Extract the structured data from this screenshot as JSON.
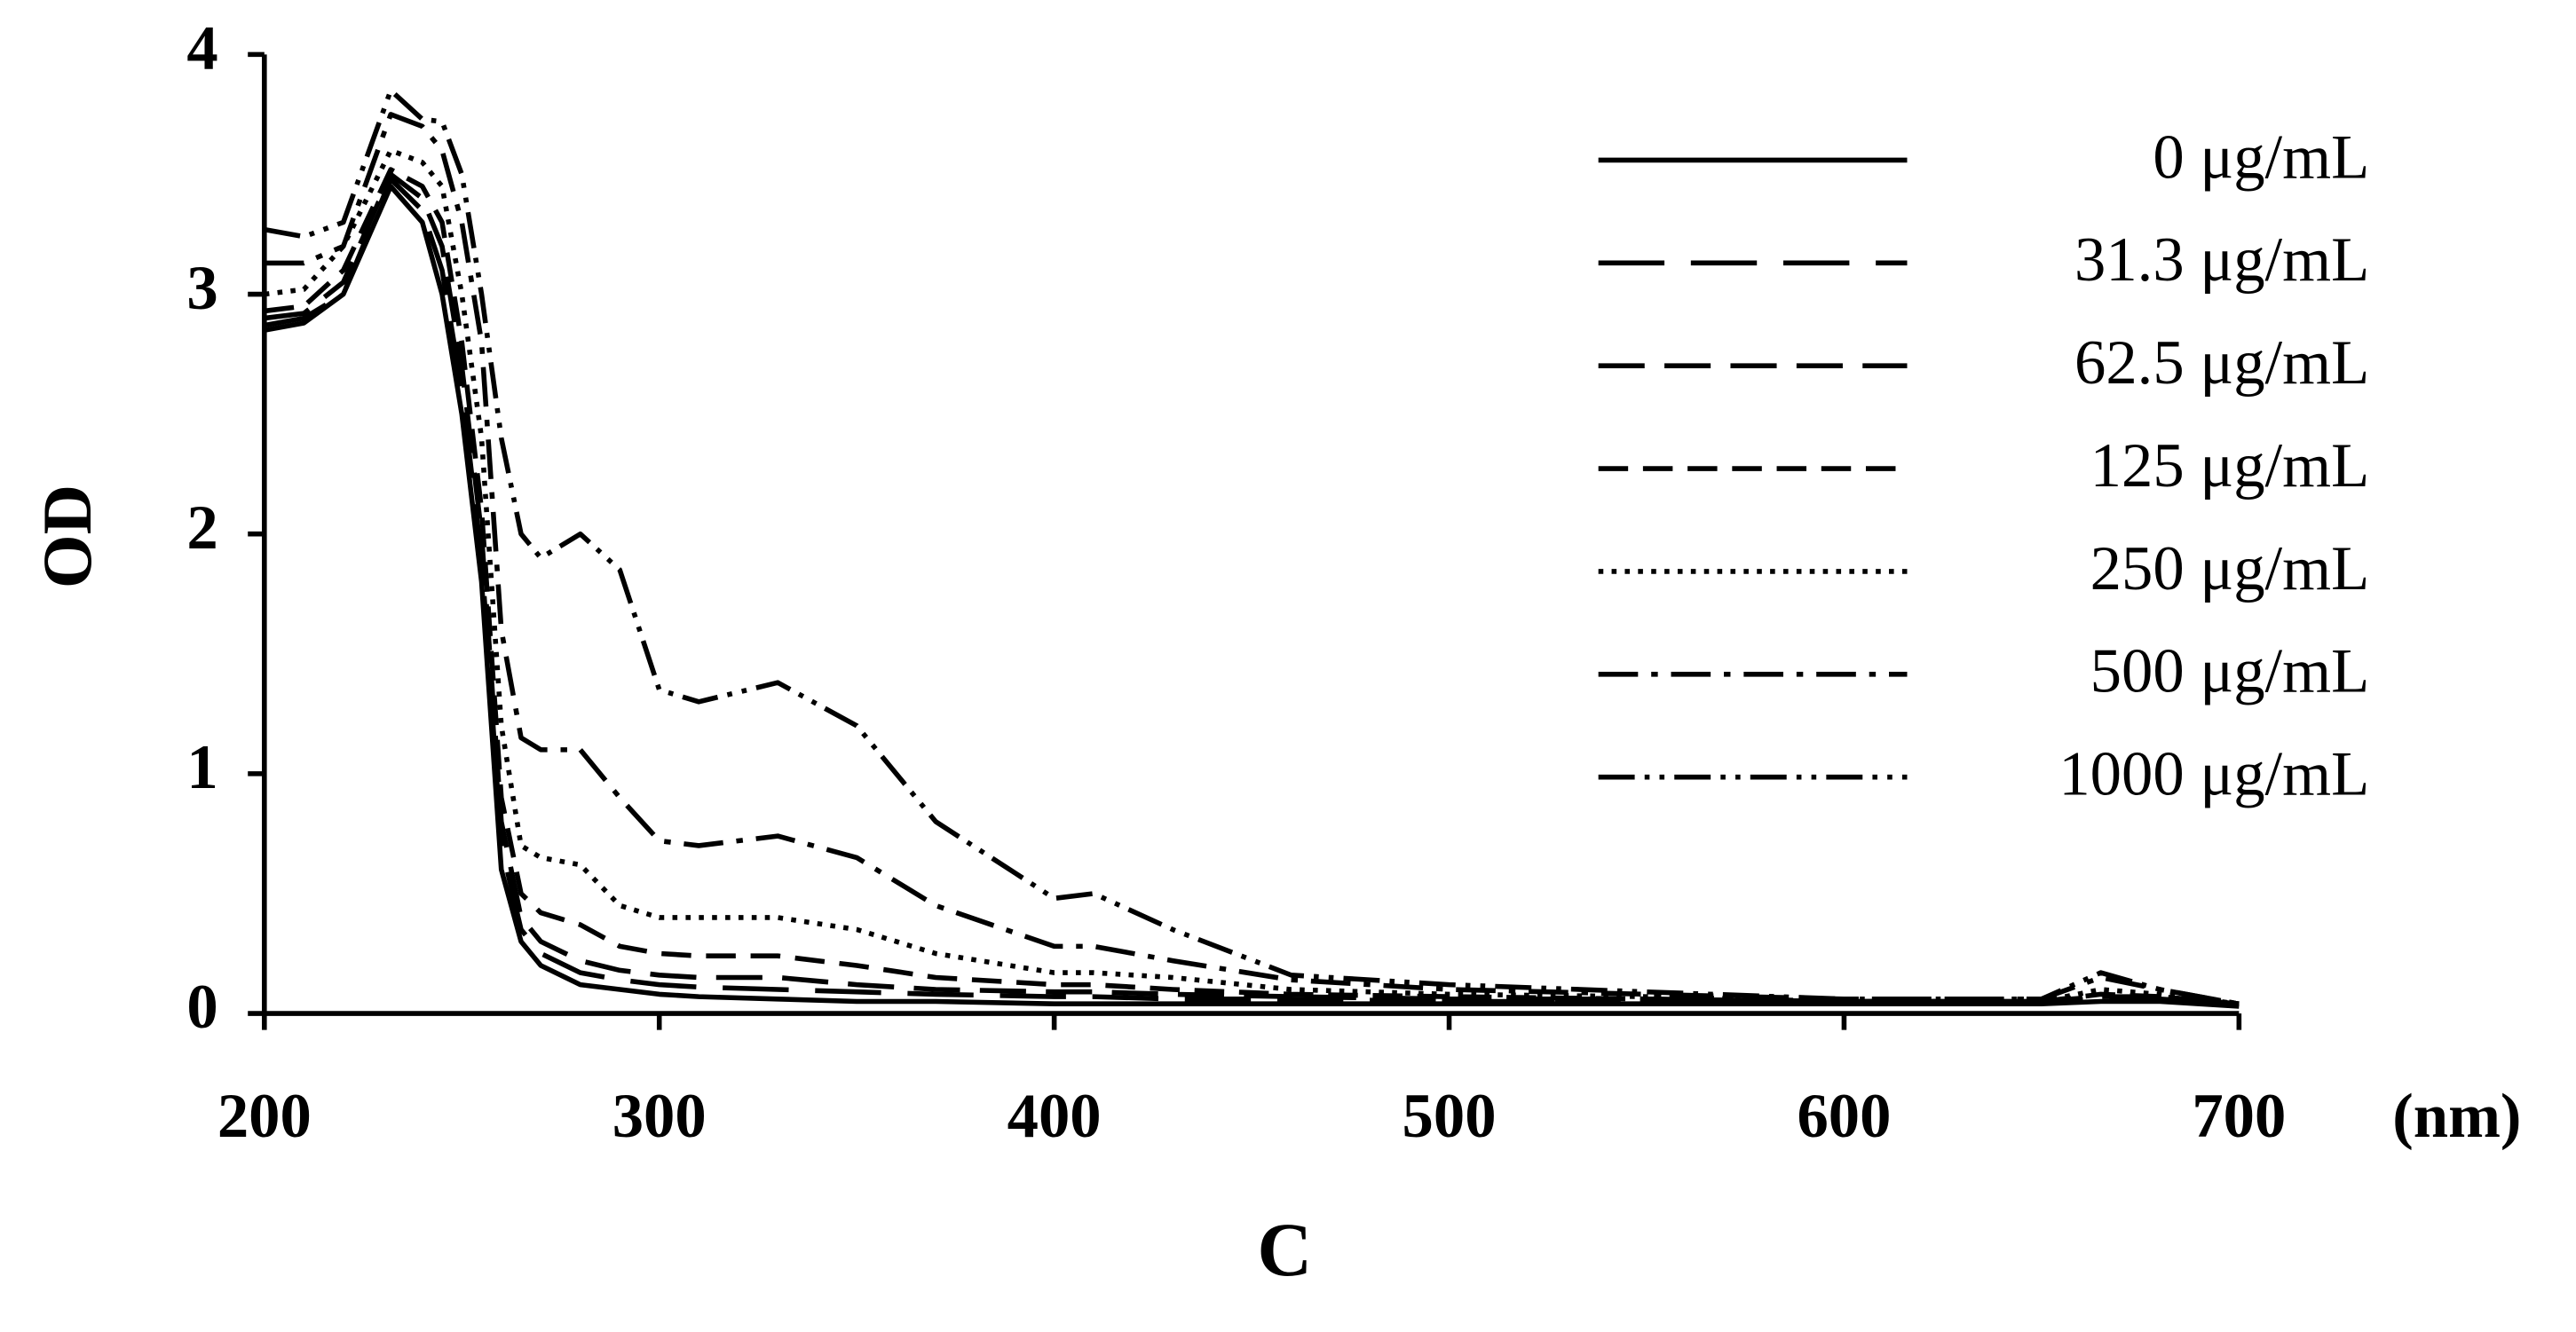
{
  "chart_data": {
    "type": "line",
    "y_label": "OD",
    "x_label": "(nm)",
    "caption": "C",
    "x": [
      200,
      210,
      220,
      232,
      240,
      245,
      250,
      255,
      260,
      265,
      270,
      280,
      290,
      300,
      310,
      330,
      350,
      370,
      400,
      410,
      430,
      460,
      500,
      550,
      600,
      650,
      665,
      680,
      700
    ],
    "series": [
      {
        "name": "0 μg/mL",
        "color": "#000000",
        "linestyle": "solid",
        "values": [
          2.85,
          2.88,
          3.0,
          3.45,
          3.3,
          3.0,
          2.5,
          1.8,
          0.6,
          0.3,
          0.2,
          0.12,
          0.1,
          0.08,
          0.07,
          0.06,
          0.05,
          0.05,
          0.04,
          0.04,
          0.04,
          0.04,
          0.04,
          0.04,
          0.04,
          0.04,
          0.05,
          0.05,
          0.03
        ]
      },
      {
        "name": "31.3 μg/mL",
        "color": "#000000",
        "linestyle": "longdash",
        "values": [
          2.87,
          2.9,
          3.0,
          3.48,
          3.35,
          3.1,
          2.6,
          1.9,
          0.7,
          0.35,
          0.25,
          0.17,
          0.14,
          0.12,
          0.11,
          0.1,
          0.09,
          0.08,
          0.07,
          0.07,
          0.06,
          0.06,
          0.05,
          0.05,
          0.05,
          0.05,
          0.06,
          0.06,
          0.04
        ]
      },
      {
        "name": "62.5 μg/mL",
        "color": "#000000",
        "linestyle": "dash",
        "values": [
          2.9,
          2.92,
          3.05,
          3.5,
          3.4,
          3.2,
          2.7,
          2.0,
          0.8,
          0.4,
          0.3,
          0.22,
          0.18,
          0.16,
          0.15,
          0.15,
          0.12,
          0.1,
          0.09,
          0.09,
          0.08,
          0.07,
          0.06,
          0.06,
          0.05,
          0.05,
          0.07,
          0.07,
          0.04
        ]
      },
      {
        "name": "125 μg/mL",
        "color": "#000000",
        "linestyle": "shortdash",
        "values": [
          2.93,
          2.95,
          3.1,
          3.52,
          3.45,
          3.3,
          2.8,
          2.1,
          0.9,
          0.5,
          0.42,
          0.37,
          0.28,
          0.25,
          0.24,
          0.24,
          0.2,
          0.15,
          0.12,
          0.12,
          0.1,
          0.08,
          0.07,
          0.06,
          0.05,
          0.05,
          0.08,
          0.07,
          0.04
        ]
      },
      {
        "name": "250 μg/mL",
        "color": "#000000",
        "linestyle": "dot",
        "values": [
          3.0,
          3.02,
          3.2,
          3.6,
          3.55,
          3.45,
          3.0,
          2.4,
          1.2,
          0.7,
          0.65,
          0.62,
          0.45,
          0.4,
          0.4,
          0.4,
          0.35,
          0.25,
          0.17,
          0.17,
          0.15,
          0.1,
          0.08,
          0.07,
          0.05,
          0.05,
          0.1,
          0.08,
          0.04
        ]
      },
      {
        "name": "500 μg/mL",
        "color": "#000000",
        "linestyle": "dashdot",
        "values": [
          3.13,
          3.13,
          3.2,
          3.75,
          3.7,
          3.6,
          3.3,
          2.8,
          1.6,
          1.15,
          1.1,
          1.1,
          0.9,
          0.72,
          0.7,
          0.74,
          0.65,
          0.45,
          0.28,
          0.28,
          0.22,
          0.14,
          0.1,
          0.08,
          0.06,
          0.06,
          0.15,
          0.1,
          0.04
        ]
      },
      {
        "name": "1000 μg/mL",
        "color": "#000000",
        "linestyle": "dashdotdot",
        "values": [
          3.27,
          3.24,
          3.3,
          3.85,
          3.73,
          3.72,
          3.5,
          3.0,
          2.4,
          2.0,
          1.9,
          2.0,
          1.85,
          1.35,
          1.3,
          1.38,
          1.2,
          0.8,
          0.48,
          0.5,
          0.35,
          0.16,
          0.12,
          0.09,
          0.06,
          0.06,
          0.17,
          0.1,
          0.04
        ]
      }
    ],
    "xlim": [
      200,
      700
    ],
    "xticks": [
      200,
      300,
      400,
      500,
      600,
      700
    ],
    "ylim": [
      0,
      4
    ],
    "yticks": [
      0,
      1,
      2,
      3,
      4
    ],
    "legend": "top-right"
  }
}
